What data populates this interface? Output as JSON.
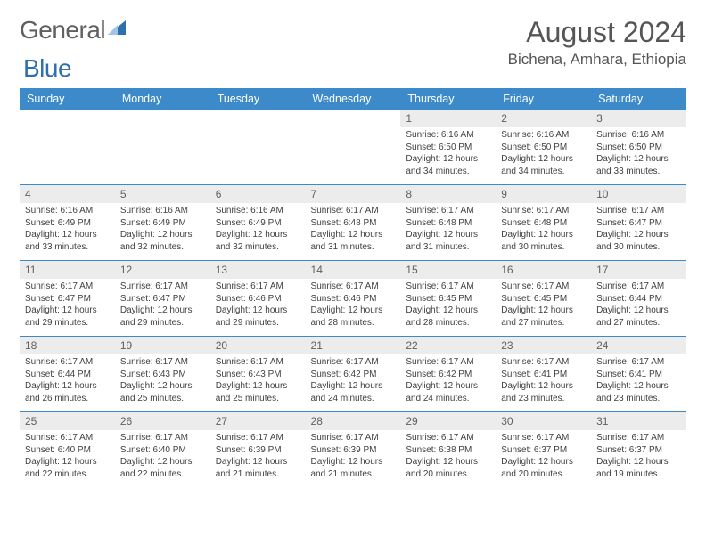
{
  "brand": {
    "name_part1": "General",
    "name_part2": "Blue"
  },
  "title": "August 2024",
  "location": "Bichena, Amhara, Ethiopia",
  "colors": {
    "header_bg": "#3c8ac9",
    "header_text": "#ffffff",
    "daynum_bg": "#ececec",
    "daynum_border": "#3c8ac9",
    "body_text": "#404040",
    "title_text": "#555555",
    "logo_gray": "#606060",
    "logo_blue": "#2f6fb0",
    "page_bg": "#ffffff"
  },
  "typography": {
    "month_title_size": 32,
    "location_size": 17,
    "dayhead_size": 12.5,
    "daynum_size": 12,
    "detail_size": 10
  },
  "weekdays": [
    "Sunday",
    "Monday",
    "Tuesday",
    "Wednesday",
    "Thursday",
    "Friday",
    "Saturday"
  ],
  "weeks": [
    {
      "days": [
        null,
        null,
        null,
        null,
        {
          "n": "1",
          "sr": "Sunrise: 6:16 AM",
          "ss": "Sunset: 6:50 PM",
          "d1": "Daylight: 12 hours",
          "d2": "and 34 minutes."
        },
        {
          "n": "2",
          "sr": "Sunrise: 6:16 AM",
          "ss": "Sunset: 6:50 PM",
          "d1": "Daylight: 12 hours",
          "d2": "and 34 minutes."
        },
        {
          "n": "3",
          "sr": "Sunrise: 6:16 AM",
          "ss": "Sunset: 6:50 PM",
          "d1": "Daylight: 12 hours",
          "d2": "and 33 minutes."
        }
      ]
    },
    {
      "days": [
        {
          "n": "4",
          "sr": "Sunrise: 6:16 AM",
          "ss": "Sunset: 6:49 PM",
          "d1": "Daylight: 12 hours",
          "d2": "and 33 minutes."
        },
        {
          "n": "5",
          "sr": "Sunrise: 6:16 AM",
          "ss": "Sunset: 6:49 PM",
          "d1": "Daylight: 12 hours",
          "d2": "and 32 minutes."
        },
        {
          "n": "6",
          "sr": "Sunrise: 6:16 AM",
          "ss": "Sunset: 6:49 PM",
          "d1": "Daylight: 12 hours",
          "d2": "and 32 minutes."
        },
        {
          "n": "7",
          "sr": "Sunrise: 6:17 AM",
          "ss": "Sunset: 6:48 PM",
          "d1": "Daylight: 12 hours",
          "d2": "and 31 minutes."
        },
        {
          "n": "8",
          "sr": "Sunrise: 6:17 AM",
          "ss": "Sunset: 6:48 PM",
          "d1": "Daylight: 12 hours",
          "d2": "and 31 minutes."
        },
        {
          "n": "9",
          "sr": "Sunrise: 6:17 AM",
          "ss": "Sunset: 6:48 PM",
          "d1": "Daylight: 12 hours",
          "d2": "and 30 minutes."
        },
        {
          "n": "10",
          "sr": "Sunrise: 6:17 AM",
          "ss": "Sunset: 6:47 PM",
          "d1": "Daylight: 12 hours",
          "d2": "and 30 minutes."
        }
      ]
    },
    {
      "days": [
        {
          "n": "11",
          "sr": "Sunrise: 6:17 AM",
          "ss": "Sunset: 6:47 PM",
          "d1": "Daylight: 12 hours",
          "d2": "and 29 minutes."
        },
        {
          "n": "12",
          "sr": "Sunrise: 6:17 AM",
          "ss": "Sunset: 6:47 PM",
          "d1": "Daylight: 12 hours",
          "d2": "and 29 minutes."
        },
        {
          "n": "13",
          "sr": "Sunrise: 6:17 AM",
          "ss": "Sunset: 6:46 PM",
          "d1": "Daylight: 12 hours",
          "d2": "and 29 minutes."
        },
        {
          "n": "14",
          "sr": "Sunrise: 6:17 AM",
          "ss": "Sunset: 6:46 PM",
          "d1": "Daylight: 12 hours",
          "d2": "and 28 minutes."
        },
        {
          "n": "15",
          "sr": "Sunrise: 6:17 AM",
          "ss": "Sunset: 6:45 PM",
          "d1": "Daylight: 12 hours",
          "d2": "and 28 minutes."
        },
        {
          "n": "16",
          "sr": "Sunrise: 6:17 AM",
          "ss": "Sunset: 6:45 PM",
          "d1": "Daylight: 12 hours",
          "d2": "and 27 minutes."
        },
        {
          "n": "17",
          "sr": "Sunrise: 6:17 AM",
          "ss": "Sunset: 6:44 PM",
          "d1": "Daylight: 12 hours",
          "d2": "and 27 minutes."
        }
      ]
    },
    {
      "days": [
        {
          "n": "18",
          "sr": "Sunrise: 6:17 AM",
          "ss": "Sunset: 6:44 PM",
          "d1": "Daylight: 12 hours",
          "d2": "and 26 minutes."
        },
        {
          "n": "19",
          "sr": "Sunrise: 6:17 AM",
          "ss": "Sunset: 6:43 PM",
          "d1": "Daylight: 12 hours",
          "d2": "and 25 minutes."
        },
        {
          "n": "20",
          "sr": "Sunrise: 6:17 AM",
          "ss": "Sunset: 6:43 PM",
          "d1": "Daylight: 12 hours",
          "d2": "and 25 minutes."
        },
        {
          "n": "21",
          "sr": "Sunrise: 6:17 AM",
          "ss": "Sunset: 6:42 PM",
          "d1": "Daylight: 12 hours",
          "d2": "and 24 minutes."
        },
        {
          "n": "22",
          "sr": "Sunrise: 6:17 AM",
          "ss": "Sunset: 6:42 PM",
          "d1": "Daylight: 12 hours",
          "d2": "and 24 minutes."
        },
        {
          "n": "23",
          "sr": "Sunrise: 6:17 AM",
          "ss": "Sunset: 6:41 PM",
          "d1": "Daylight: 12 hours",
          "d2": "and 23 minutes."
        },
        {
          "n": "24",
          "sr": "Sunrise: 6:17 AM",
          "ss": "Sunset: 6:41 PM",
          "d1": "Daylight: 12 hours",
          "d2": "and 23 minutes."
        }
      ]
    },
    {
      "days": [
        {
          "n": "25",
          "sr": "Sunrise: 6:17 AM",
          "ss": "Sunset: 6:40 PM",
          "d1": "Daylight: 12 hours",
          "d2": "and 22 minutes."
        },
        {
          "n": "26",
          "sr": "Sunrise: 6:17 AM",
          "ss": "Sunset: 6:40 PM",
          "d1": "Daylight: 12 hours",
          "d2": "and 22 minutes."
        },
        {
          "n": "27",
          "sr": "Sunrise: 6:17 AM",
          "ss": "Sunset: 6:39 PM",
          "d1": "Daylight: 12 hours",
          "d2": "and 21 minutes."
        },
        {
          "n": "28",
          "sr": "Sunrise: 6:17 AM",
          "ss": "Sunset: 6:39 PM",
          "d1": "Daylight: 12 hours",
          "d2": "and 21 minutes."
        },
        {
          "n": "29",
          "sr": "Sunrise: 6:17 AM",
          "ss": "Sunset: 6:38 PM",
          "d1": "Daylight: 12 hours",
          "d2": "and 20 minutes."
        },
        {
          "n": "30",
          "sr": "Sunrise: 6:17 AM",
          "ss": "Sunset: 6:37 PM",
          "d1": "Daylight: 12 hours",
          "d2": "and 20 minutes."
        },
        {
          "n": "31",
          "sr": "Sunrise: 6:17 AM",
          "ss": "Sunset: 6:37 PM",
          "d1": "Daylight: 12 hours",
          "d2": "and 19 minutes."
        }
      ]
    }
  ]
}
